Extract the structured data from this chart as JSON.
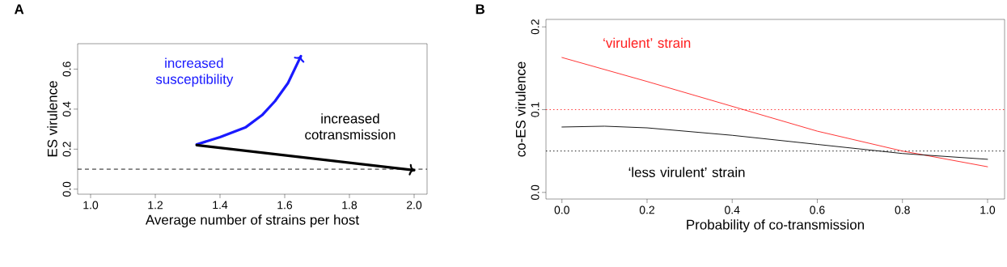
{
  "chart_data": [
    {
      "type": "line",
      "title": "A",
      "xlabel": "Average number of strains per host",
      "ylabel": "ES virulence",
      "xlim": [
        0.96,
        2.04
      ],
      "ylim": [
        -0.025,
        0.727
      ],
      "xticks": [
        {
          "value": 1,
          "label": "1.0"
        },
        1.2,
        1.4,
        1.6,
        1.8,
        {
          "value": 2,
          "label": "2.0"
        }
      ],
      "yticks": [
        {
          "value": 0,
          "label": "0.0"
        },
        0.2,
        0.4,
        0.6
      ],
      "series": [
        {
          "name": "increased susceptibility",
          "color": "#1a1aff",
          "x": [
            1.328,
            1.4,
            1.48,
            1.53,
            1.57,
            1.61,
            1.65
          ],
          "values": [
            0.224,
            0.26,
            0.31,
            0.37,
            0.44,
            0.53,
            0.665
          ]
        },
        {
          "name": "increased cotransmission",
          "color": "#000000",
          "x": [
            1.328,
            2.0
          ],
          "values": [
            0.22,
            0.095
          ]
        }
      ],
      "ref_lines": [
        {
          "axis": "y",
          "value": 0.1,
          "color": "#000000",
          "line_style": "dashed"
        }
      ]
    },
    {
      "type": "line",
      "title": "B",
      "xlabel": "Probability of co-transmission",
      "ylabel": "co-ES virulence",
      "xlim": [
        -0.0375,
        1.04
      ],
      "ylim": [
        -0.008,
        0.209
      ],
      "xticks": [
        {
          "value": 0,
          "label": "0.0"
        },
        0.2,
        0.4,
        0.6,
        0.8,
        {
          "value": 1,
          "label": "1.0"
        }
      ],
      "yticks": [
        {
          "value": 0,
          "label": "0.0"
        },
        0.1,
        0.2
      ],
      "series": [
        {
          "name": "‘virulent’ strain",
          "color": "#ff2020",
          "x": [
            0.0,
            0.2,
            0.4,
            0.6,
            0.8,
            1.0
          ],
          "values": [
            0.163,
            0.134,
            0.104,
            0.074,
            0.05,
            0.031
          ]
        },
        {
          "name": "‘less virulent’ strain",
          "color": "#000000",
          "x": [
            0.0,
            0.1,
            0.2,
            0.4,
            0.6,
            0.8,
            1.0
          ],
          "values": [
            0.079,
            0.08,
            0.078,
            0.069,
            0.058,
            0.047,
            0.04
          ]
        }
      ],
      "ref_lines": [
        {
          "axis": "y",
          "value": 0.1,
          "color": "#ff2020",
          "line_style": "dotted"
        },
        {
          "axis": "y",
          "value": 0.05,
          "color": "#000000",
          "line_style": "dotted"
        }
      ]
    }
  ]
}
